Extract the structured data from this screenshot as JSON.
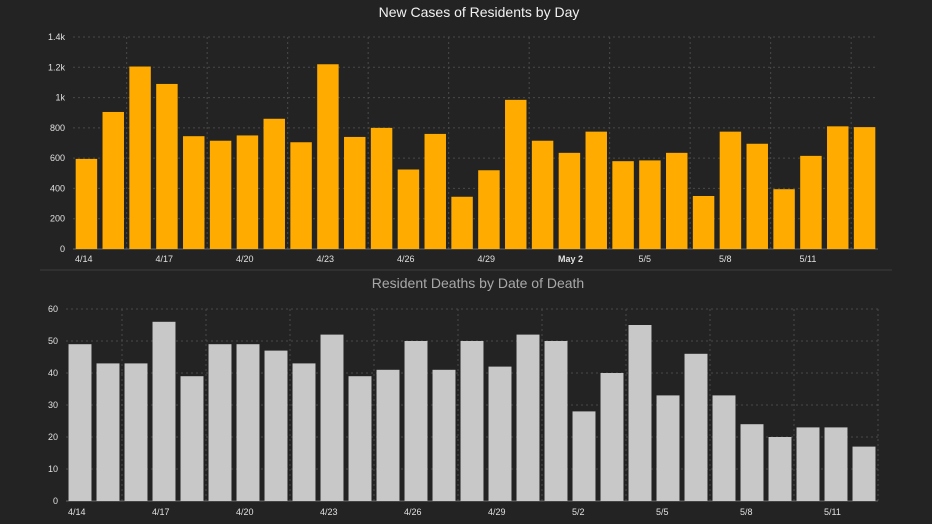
{
  "colors": {
    "background": "#232323",
    "cases_bar": "#ffab00",
    "deaths_bar": "#c8c8c8",
    "grid": "#4a4a4a",
    "tick_text": "#e0e0e0",
    "title_cases": "#f2f2f2",
    "title_deaths": "#a8a8a8",
    "separator": "#3c3c3c"
  },
  "chart_data": [
    {
      "type": "bar",
      "title": "New Cases of Residents by Day",
      "xlabel": "",
      "ylabel": "",
      "ylim": [
        0,
        1400
      ],
      "y_ticks": [
        0,
        200,
        400,
        600,
        800,
        1000,
        1200,
        1400
      ],
      "y_tick_labels": [
        "0",
        "200",
        "400",
        "600",
        "800",
        "1k",
        "1.2k",
        "1.4k"
      ],
      "grid": true,
      "x_tick_labels": [
        {
          "index": 0,
          "label": "4/14",
          "bold": false
        },
        {
          "index": 3,
          "label": "4/17",
          "bold": false
        },
        {
          "index": 6,
          "label": "4/20",
          "bold": false
        },
        {
          "index": 9,
          "label": "4/23",
          "bold": false
        },
        {
          "index": 12,
          "label": "4/26",
          "bold": false
        },
        {
          "index": 15,
          "label": "4/29",
          "bold": false
        },
        {
          "index": 18,
          "label": "May 2",
          "bold": true
        },
        {
          "index": 21,
          "label": "5/5",
          "bold": false
        },
        {
          "index": 24,
          "label": "5/8",
          "bold": false
        },
        {
          "index": 27,
          "label": "5/11",
          "bold": false
        }
      ],
      "values": [
        595,
        905,
        1205,
        1090,
        745,
        715,
        750,
        860,
        705,
        1220,
        740,
        800,
        525,
        760,
        345,
        520,
        985,
        715,
        635,
        775,
        580,
        585,
        635,
        350,
        775,
        695,
        395,
        615,
        810,
        805
      ]
    },
    {
      "type": "bar",
      "title": "Resident Deaths by Date of Death",
      "xlabel": "",
      "ylabel": "",
      "ylim": [
        0,
        60
      ],
      "y_ticks": [
        0,
        10,
        20,
        30,
        40,
        50,
        60
      ],
      "y_tick_labels": [
        "0",
        "10",
        "20",
        "30",
        "40",
        "50",
        "60"
      ],
      "grid": true,
      "x_tick_labels": [
        {
          "index": 0,
          "label": "4/14",
          "bold": false
        },
        {
          "index": 3,
          "label": "4/17",
          "bold": false
        },
        {
          "index": 6,
          "label": "4/20",
          "bold": false
        },
        {
          "index": 9,
          "label": "4/23",
          "bold": false
        },
        {
          "index": 12,
          "label": "4/26",
          "bold": false
        },
        {
          "index": 15,
          "label": "4/29",
          "bold": false
        },
        {
          "index": 18,
          "label": "5/2",
          "bold": false
        },
        {
          "index": 21,
          "label": "5/5",
          "bold": false
        },
        {
          "index": 24,
          "label": "5/8",
          "bold": false
        },
        {
          "index": 27,
          "label": "5/11",
          "bold": false
        }
      ],
      "values": [
        49,
        43,
        43,
        56,
        39,
        49,
        49,
        47,
        43,
        52,
        39,
        41,
        50,
        41,
        50,
        42,
        52,
        50,
        28,
        40,
        55,
        33,
        46,
        33,
        24,
        20,
        23,
        23,
        17
      ]
    }
  ]
}
